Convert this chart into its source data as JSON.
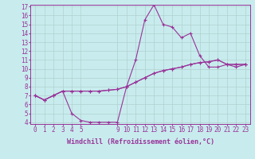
{
  "xlabel": "Windchill (Refroidissement éolien,°C)",
  "background_color": "#c8eced",
  "grid_color": "#b0d0d0",
  "line_color": "#993399",
  "x_all": [
    0,
    1,
    2,
    3,
    4,
    5,
    6,
    7,
    8,
    9,
    10,
    11,
    12,
    13,
    14,
    15,
    16,
    17,
    18,
    19,
    20,
    21,
    22,
    23
  ],
  "line1_y": [
    7.0,
    6.5,
    7.0,
    7.5,
    5.0,
    4.2,
    4.0,
    4.0,
    4.0,
    4.0,
    8.0,
    8.5,
    9.0,
    9.5,
    9.8,
    10.0,
    10.2,
    10.5,
    10.7,
    10.8,
    11.0,
    10.5,
    10.5,
    10.5
  ],
  "line2_y": [
    7.0,
    6.5,
    7.0,
    7.5,
    7.5,
    7.5,
    7.5,
    7.5,
    7.6,
    7.7,
    8.0,
    8.5,
    9.0,
    9.5,
    9.8,
    10.0,
    10.2,
    10.5,
    10.7,
    10.8,
    11.0,
    10.5,
    10.5,
    10.5
  ],
  "line3_y": [
    7.0,
    6.5,
    7.0,
    7.5,
    7.5,
    7.5,
    7.5,
    7.5,
    7.6,
    7.7,
    8.0,
    11.0,
    15.5,
    17.2,
    15.0,
    14.7,
    13.5,
    14.0,
    11.5,
    10.2,
    10.2,
    10.5,
    10.2,
    10.5
  ],
  "ylim": [
    4,
    17
  ],
  "yticks": [
    4,
    5,
    6,
    7,
    8,
    9,
    10,
    11,
    12,
    13,
    14,
    15,
    16,
    17
  ],
  "xticks": [
    0,
    1,
    2,
    3,
    4,
    5,
    9,
    10,
    11,
    12,
    13,
    14,
    15,
    16,
    17,
    18,
    19,
    20,
    21,
    22,
    23
  ],
  "tick_fontsize": 5.5,
  "marker": "+"
}
